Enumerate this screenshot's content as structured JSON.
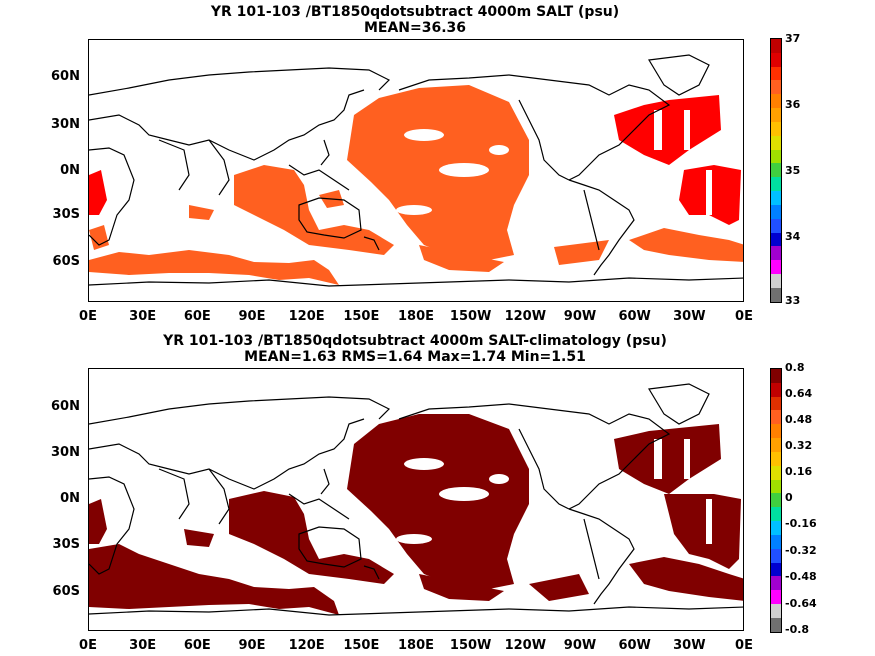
{
  "panel_top": {
    "title_line1": "YR 101-103 /BT1850qdotsubtract 4000m SALT (psu)",
    "title_line2": "MEAN=36.36",
    "fill_color": "#ff6020",
    "highlight_color": "#ff0000",
    "colorbar_labels": [
      "37",
      "36",
      "35",
      "34",
      "33"
    ],
    "colorbar_colors": [
      "#c00000",
      "#e00000",
      "#ff3000",
      "#ff6020",
      "#ff8000",
      "#ffa000",
      "#ffc000",
      "#e0e000",
      "#a0e000",
      "#40d040",
      "#00e0a0",
      "#00c0ff",
      "#0080ff",
      "#2050ff",
      "#0000d0",
      "#a000d0",
      "#ff00ff",
      "#d0d0d0",
      "#707070"
    ]
  },
  "panel_bottom": {
    "title_line1": "YR 101-103 /BT1850qdotsubtract 4000m SALT-climatology (psu)",
    "title_line2": "MEAN=1.63   RMS=1.64   Max=1.74   Min=1.51",
    "fill_color": "#800000",
    "colorbar_labels": [
      "0.8",
      "0.64",
      "0.48",
      "0.32",
      "0.16",
      "0",
      "-0.16",
      "-0.32",
      "-0.48",
      "-0.64",
      "-0.8"
    ],
    "colorbar_colors": [
      "#800000",
      "#c00000",
      "#e03000",
      "#ff6020",
      "#ff8000",
      "#ffa000",
      "#ffc000",
      "#e0e000",
      "#a0e000",
      "#40d040",
      "#00e0a0",
      "#00c0ff",
      "#0080ff",
      "#2050ff",
      "#0000d0",
      "#a000d0",
      "#ff00ff",
      "#d0d0d0",
      "#707070"
    ]
  },
  "lat_labels": [
    "60N",
    "30N",
    "0N",
    "30S",
    "60S"
  ],
  "lon_labels": [
    "0E",
    "30E",
    "60E",
    "90E",
    "120E",
    "150E",
    "180E",
    "150W",
    "120W",
    "90W",
    "60W",
    "30W",
    "0E"
  ]
}
